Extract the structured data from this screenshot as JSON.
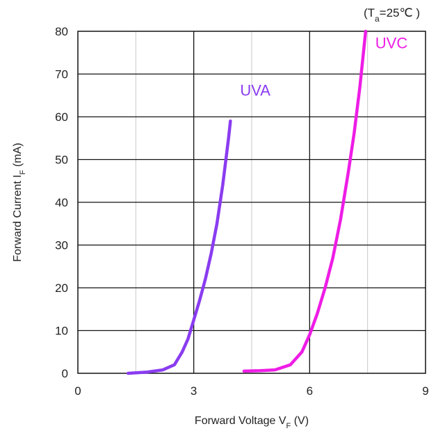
{
  "chart_data": {
    "type": "line",
    "condition": {
      "prefix": "(T",
      "subscript": "a",
      "suffix": "=25℃ )"
    },
    "xlabel": {
      "main": "Forward Voltage V",
      "subscript": "F",
      "unit": " (V)"
    },
    "ylabel": {
      "main": "Forward Current I",
      "subscript": "F",
      "unit": " (mA)"
    },
    "xlim": [
      0,
      9
    ],
    "ylim": [
      0,
      80
    ],
    "x_ticks": [
      0,
      3,
      6,
      9
    ],
    "y_ticks": [
      0,
      10,
      20,
      30,
      40,
      50,
      60,
      70,
      80
    ],
    "x_major_grid": [
      3,
      6
    ],
    "x_minor_grid": [
      1.5,
      4.5,
      7.5
    ],
    "y_grid": [
      10,
      20,
      30,
      40,
      50,
      60,
      70
    ],
    "series": [
      {
        "name": "UVA",
        "color": "#8a3cf0",
        "label_at": [
          4.2,
          65
        ],
        "x": [
          1.3,
          1.8,
          2.2,
          2.5,
          2.7,
          2.85,
          3.0,
          3.15,
          3.3,
          3.45,
          3.6,
          3.75,
          3.9,
          3.95
        ],
        "y": [
          0,
          0.3,
          0.8,
          2,
          5,
          8,
          12.5,
          17,
          22,
          28,
          35,
          44,
          55,
          59
        ]
      },
      {
        "name": "UVC",
        "color": "#ee1de6",
        "label_at": [
          7.7,
          76
        ],
        "x": [
          4.3,
          4.7,
          5.1,
          5.5,
          5.8,
          6.0,
          6.2,
          6.4,
          6.6,
          6.8,
          7.0,
          7.15,
          7.3,
          7.45
        ],
        "y": [
          0.5,
          0.6,
          0.8,
          2,
          5,
          9,
          14,
          20,
          27,
          36,
          47,
          56,
          67,
          80
        ]
      }
    ]
  }
}
